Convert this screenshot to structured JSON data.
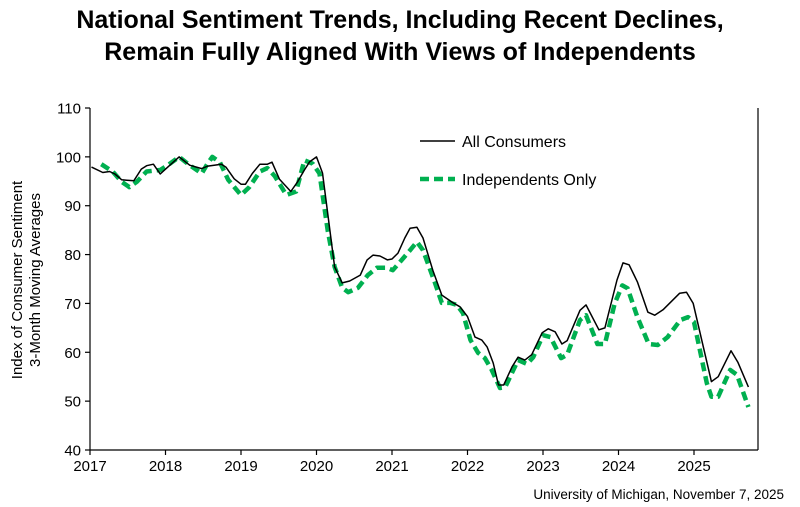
{
  "chart_data": {
    "type": "line",
    "title": [
      "National Sentiment Trends, Including Recent Declines,",
      "Remain Fully Aligned With Views of Independents"
    ],
    "ylabel": [
      "Index of Consumer Sentiment",
      "3-Month Moving Averages"
    ],
    "xlabel": "",
    "xlim": [
      2017,
      2025.85
    ],
    "ylim": [
      40,
      110
    ],
    "xticks": [
      "2017",
      "2018",
      "2019",
      "2020",
      "2021",
      "2022",
      "2023",
      "2024",
      "2025"
    ],
    "yticks": [
      "40",
      "50",
      "60",
      "70",
      "80",
      "90",
      "100",
      "110"
    ],
    "grid": false,
    "legend_position": "top-right",
    "source": "University of Michigan, November 7, 2025",
    "series": [
      {
        "name": "All Consumers",
        "color": "#000000",
        "style": "solid",
        "x": [
          2017.02,
          2017.17,
          2017.26,
          2017.33,
          2017.42,
          2017.58,
          2017.68,
          2017.75,
          2017.84,
          2017.93,
          2018.03,
          2018.18,
          2018.32,
          2018.48,
          2018.56,
          2018.74,
          2018.8,
          2018.91,
          2019.0,
          2019.06,
          2019.15,
          2019.25,
          2019.35,
          2019.41,
          2019.51,
          2019.66,
          2019.75,
          2019.84,
          2019.91,
          2020.0,
          2020.08,
          2020.24,
          2020.34,
          2020.44,
          2020.58,
          2020.67,
          2020.75,
          2020.84,
          2020.94,
          2021.0,
          2021.08,
          2021.17,
          2021.24,
          2021.33,
          2021.41,
          2021.54,
          2021.66,
          2021.81,
          2021.9,
          2022.0,
          2022.1,
          2022.19,
          2022.26,
          2022.34,
          2022.41,
          2022.48,
          2022.59,
          2022.67,
          2022.76,
          2022.85,
          2022.99,
          2023.07,
          2023.16,
          2023.25,
          2023.32,
          2023.49,
          2023.57,
          2023.74,
          2023.82,
          2023.98,
          2024.06,
          2024.14,
          2024.25,
          2024.39,
          2024.48,
          2024.59,
          2024.81,
          2024.9,
          2024.99,
          2025.23,
          2025.32,
          2025.49,
          2025.58,
          2025.72
        ],
        "y": [
          97.9,
          96.8,
          97.0,
          96.5,
          95.3,
          95.1,
          97.5,
          98.2,
          98.5,
          96.5,
          97.9,
          100.0,
          98.3,
          97.6,
          98.1,
          98.5,
          97.9,
          95.5,
          94.4,
          94.4,
          96.6,
          98.5,
          98.5,
          98.9,
          95.4,
          92.9,
          94.9,
          97.3,
          99.0,
          100.0,
          96.7,
          77.5,
          74.2,
          74.6,
          75.8,
          78.9,
          79.9,
          79.7,
          78.9,
          79.1,
          80.3,
          83.4,
          85.4,
          85.6,
          83.4,
          76.8,
          71.7,
          70.1,
          69.3,
          67.3,
          63.1,
          62.5,
          61.1,
          57.8,
          53.3,
          53.3,
          57.0,
          59.0,
          58.4,
          59.5,
          64.0,
          64.8,
          64.2,
          61.7,
          62.4,
          68.6,
          69.7,
          64.6,
          65.0,
          74.8,
          78.3,
          77.9,
          74.4,
          68.2,
          67.6,
          68.7,
          72.1,
          72.3,
          70.0,
          54.0,
          55.0,
          60.3,
          58.0,
          52.9
        ]
      },
      {
        "name": "Independents Only",
        "color": "#00B050",
        "style": "dashed",
        "x": [
          2017.15,
          2017.3,
          2017.42,
          2017.52,
          2017.62,
          2017.75,
          2017.93,
          2018.03,
          2018.18,
          2018.32,
          2018.48,
          2018.56,
          2018.62,
          2018.72,
          2018.83,
          2019.0,
          2019.11,
          2019.25,
          2019.35,
          2019.45,
          2019.6,
          2019.73,
          2019.84,
          2019.95,
          2020.04,
          2020.15,
          2020.24,
          2020.34,
          2020.42,
          2020.55,
          2020.68,
          2020.8,
          2020.93,
          2021.01,
          2021.13,
          2021.24,
          2021.33,
          2021.41,
          2021.57,
          2021.66,
          2021.77,
          2021.86,
          2021.94,
          2022.04,
          2022.14,
          2022.23,
          2022.32,
          2022.43,
          2022.5,
          2022.59,
          2022.67,
          2022.79,
          2022.87,
          2023.0,
          2023.1,
          2023.24,
          2023.32,
          2023.49,
          2023.57,
          2023.72,
          2023.82,
          2023.95,
          2024.05,
          2024.12,
          2024.25,
          2024.4,
          2024.52,
          2024.65,
          2024.82,
          2024.92,
          2025.0,
          2025.17,
          2025.23,
          2025.32,
          2025.48,
          2025.57,
          2025.72
        ],
        "y": [
          98.5,
          97.0,
          94.9,
          93.8,
          94.9,
          97.0,
          97.3,
          98.3,
          100.0,
          98.3,
          96.6,
          98.7,
          100.0,
          98.9,
          95.3,
          92.2,
          93.8,
          97.0,
          97.7,
          96.0,
          92.2,
          92.9,
          99.3,
          98.6,
          96.6,
          84.8,
          77.5,
          73.2,
          72.3,
          73.2,
          75.8,
          77.3,
          77.3,
          76.8,
          78.9,
          80.9,
          82.6,
          80.9,
          74.2,
          70.1,
          70.1,
          69.7,
          68.0,
          62.5,
          59.9,
          58.8,
          56.4,
          52.7,
          52.9,
          55.8,
          58.4,
          57.6,
          59.0,
          63.5,
          63.1,
          58.8,
          59.5,
          66.6,
          67.6,
          61.7,
          61.7,
          70.0,
          73.7,
          73.1,
          67.2,
          61.7,
          61.5,
          63.1,
          66.6,
          67.2,
          66.2,
          53.7,
          50.9,
          50.9,
          56.4,
          55.4,
          48.8
        ]
      }
    ]
  }
}
